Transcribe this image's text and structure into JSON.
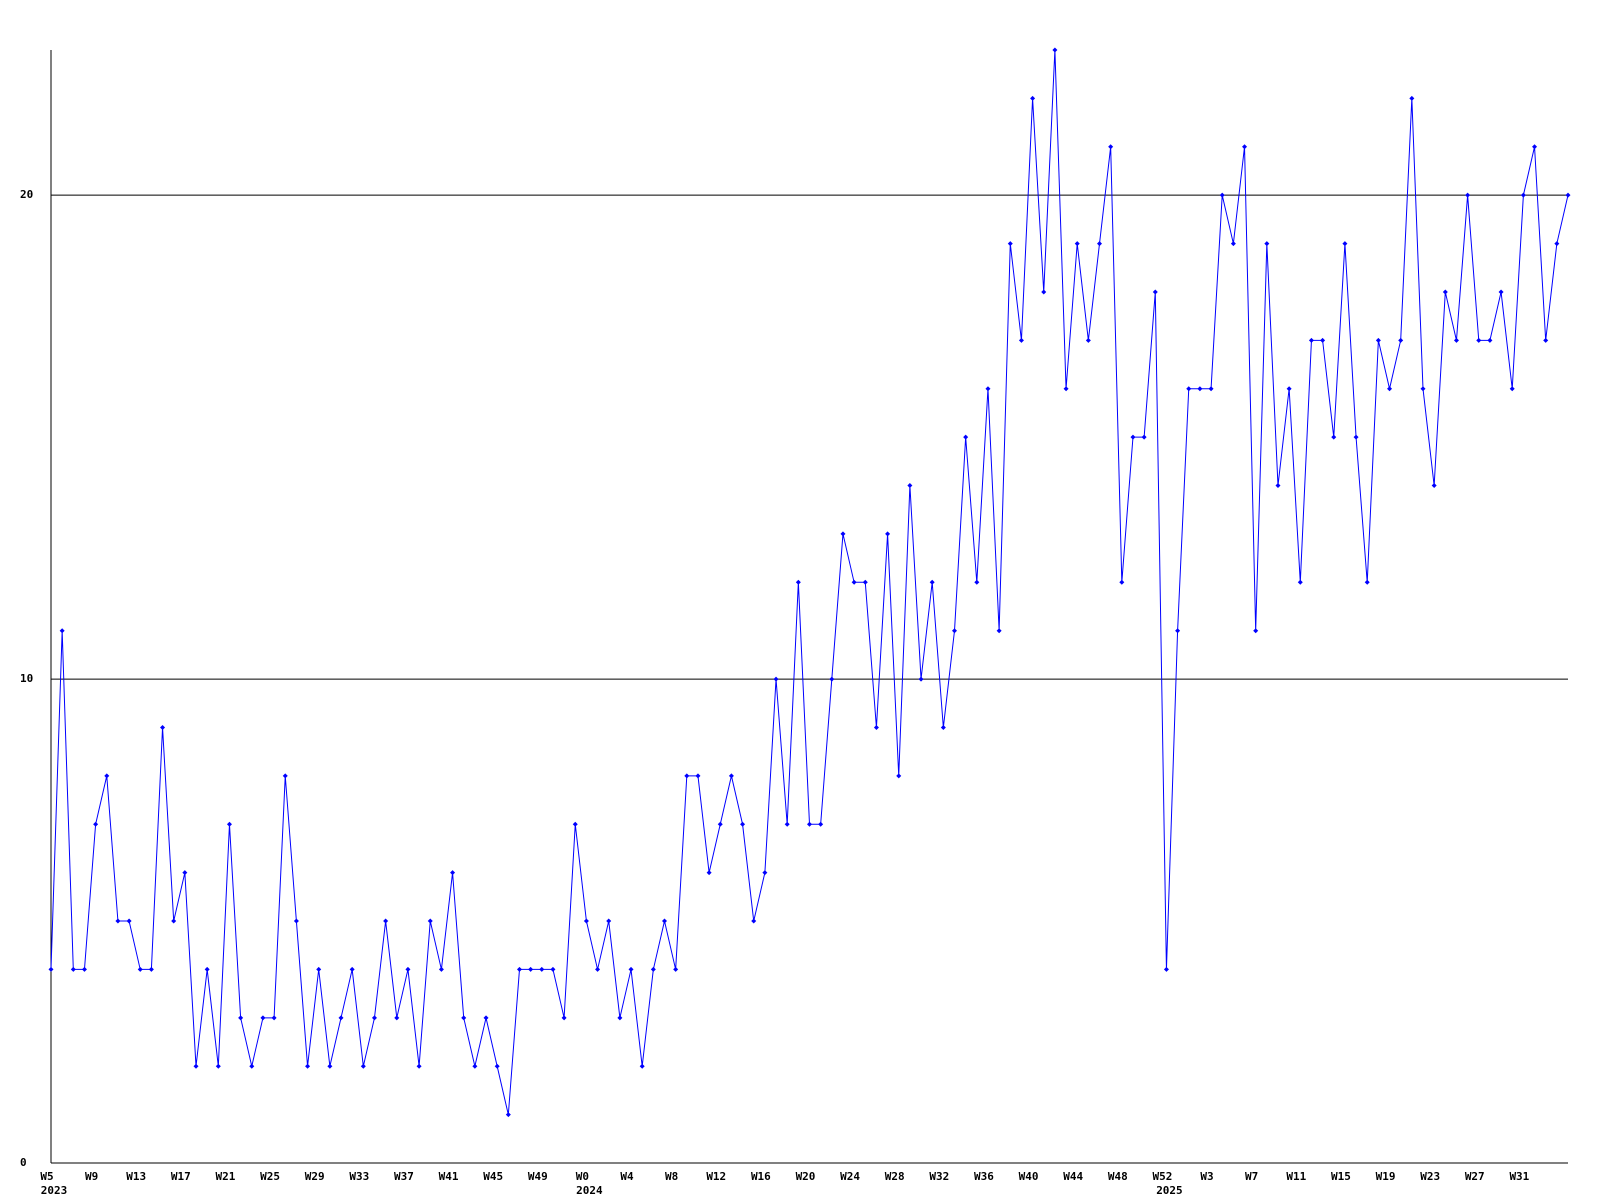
{
  "chart_data": {
    "type": "line",
    "categories": [
      "W5",
      null,
      null,
      null,
      "W9",
      null,
      null,
      null,
      "W13",
      null,
      null,
      null,
      "W17",
      null,
      null,
      null,
      "W21",
      null,
      null,
      null,
      "W25",
      null,
      null,
      null,
      "W29",
      null,
      null,
      null,
      "W33",
      null,
      null,
      null,
      "W37",
      null,
      null,
      null,
      "W41",
      null,
      null,
      null,
      "W45",
      null,
      null,
      null,
      "W49",
      null,
      null,
      null,
      "W0",
      null,
      null,
      null,
      "W4",
      null,
      null,
      null,
      "W8",
      null,
      null,
      null,
      "W12",
      null,
      null,
      null,
      "W16",
      null,
      null,
      null,
      "W20",
      null,
      null,
      null,
      "W24",
      null,
      null,
      null,
      "W28",
      null,
      null,
      null,
      "W32",
      null,
      null,
      null,
      "W36",
      null,
      null,
      null,
      "W40",
      null,
      null,
      null,
      "W44",
      null,
      null,
      null,
      "W48",
      null,
      null,
      null,
      "W52",
      null,
      null,
      null,
      "W3",
      null,
      null,
      null,
      "W7",
      null,
      null,
      null,
      "W11",
      null,
      null,
      null,
      "W15",
      null,
      null,
      null,
      "W19",
      null,
      null,
      null,
      "W23",
      null,
      null,
      null,
      "W27",
      null,
      null,
      null,
      "W31",
      null,
      null,
      null,
      null
    ],
    "category_years": [
      "2023",
      null,
      null,
      null,
      null,
      null,
      null,
      null,
      null,
      null,
      null,
      null,
      null,
      null,
      null,
      null,
      null,
      null,
      null,
      null,
      null,
      null,
      null,
      null,
      null,
      null,
      null,
      null,
      null,
      null,
      null,
      null,
      null,
      null,
      null,
      null,
      null,
      null,
      null,
      null,
      null,
      null,
      null,
      null,
      null,
      null,
      null,
      null,
      "2024",
      null,
      null,
      null,
      null,
      null,
      null,
      null,
      null,
      null,
      null,
      null,
      null,
      null,
      null,
      null,
      null,
      null,
      null,
      null,
      null,
      null,
      null,
      null,
      null,
      null,
      null,
      null,
      null,
      null,
      null,
      null,
      null,
      null,
      null,
      null,
      null,
      null,
      null,
      null,
      null,
      null,
      null,
      null,
      null,
      null,
      null,
      null,
      null,
      null,
      null,
      null,
      "2025",
      null,
      null,
      null,
      null,
      null,
      null,
      null,
      null,
      null,
      null,
      null,
      null,
      null,
      null,
      null,
      null,
      null,
      null,
      null,
      null,
      null,
      null,
      null,
      null,
      null,
      null,
      null,
      null,
      null,
      null,
      null,
      null,
      null,
      null,
      null
    ],
    "values": [
      4,
      11,
      4,
      4,
      7,
      8,
      5,
      5,
      4,
      4,
      9,
      5,
      6,
      2,
      4,
      2,
      7,
      3,
      2,
      3,
      3,
      8,
      5,
      2,
      4,
      2,
      3,
      4,
      2,
      3,
      5,
      3,
      4,
      2,
      5,
      4,
      6,
      3,
      2,
      3,
      2,
      1,
      4,
      4,
      4,
      4,
      3,
      7,
      5,
      4,
      5,
      3,
      4,
      2,
      4,
      5,
      4,
      8,
      8,
      6,
      7,
      8,
      7,
      5,
      6,
      10,
      7,
      12,
      7,
      7,
      10,
      13,
      12,
      12,
      9,
      13,
      8,
      14,
      10,
      12,
      9,
      11,
      15,
      12,
      16,
      11,
      19,
      17,
      22,
      18,
      23,
      16,
      19,
      17,
      19,
      21,
      12,
      15,
      15,
      18,
      4,
      11,
      16,
      16,
      16,
      20,
      19,
      21,
      11,
      19,
      14,
      16,
      12,
      17,
      17,
      15,
      19,
      15,
      12,
      17,
      16,
      17,
      22,
      16,
      14,
      18,
      17,
      20,
      17,
      17,
      18,
      16,
      20,
      21,
      17,
      19,
      20
    ],
    "color": "#0000ff",
    "ylim": [
      0,
      23
    ],
    "yticks": [
      0,
      10,
      20
    ],
    "grid": true,
    "grid_color": "#000000"
  }
}
